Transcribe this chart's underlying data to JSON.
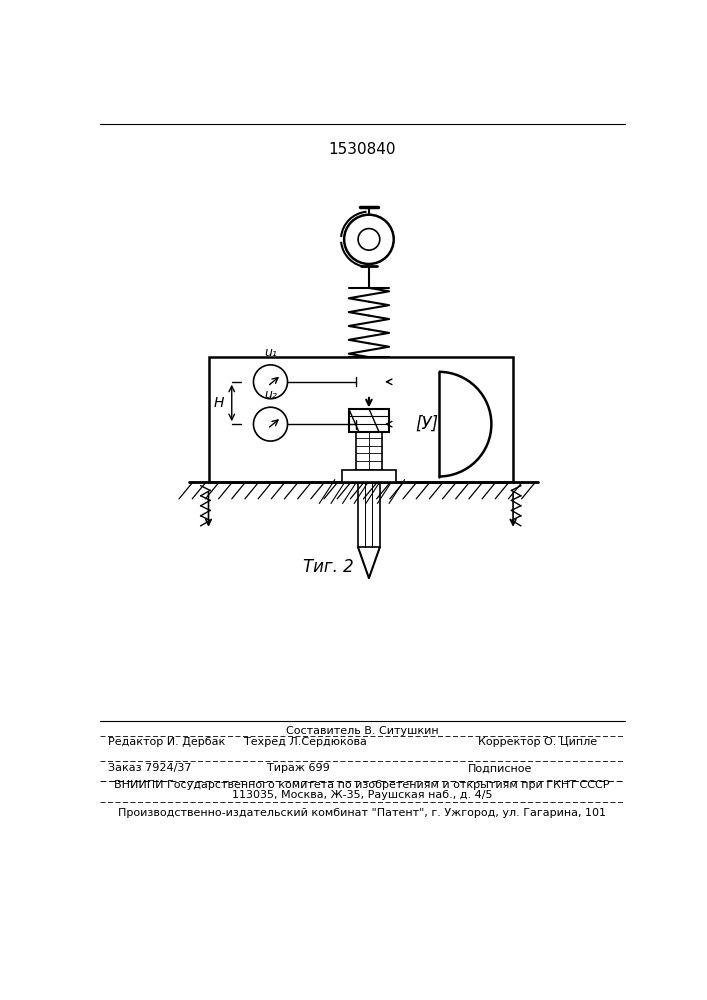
{
  "patent_number": "1530840",
  "fig_label": "Τиг. 2",
  "bg_color": "#ffffff",
  "lc": "#000000",
  "footer": {
    "sestavitel": "Составитель В. Ситушкин",
    "redaktor": "Редактор И. Дербак",
    "tehred": "Техред Л.Сердюкова",
    "korrektor": "Корректор О. Ципле",
    "zakaz": "Заказ 7924/37",
    "tirazh": "Тираж 699",
    "podpisnoe": "Подписное",
    "vnipi": "ВНИИПИ Государственного комитета по изобретениям и открытиям при ГКНТ СССР",
    "address": "113035, Москва, Ж-35, Раушская наб., д. 4/5",
    "kombinat": "Производственно-издательский комбинат \"Патент\", г. Ужгород, ул. Гагарина, 101"
  }
}
